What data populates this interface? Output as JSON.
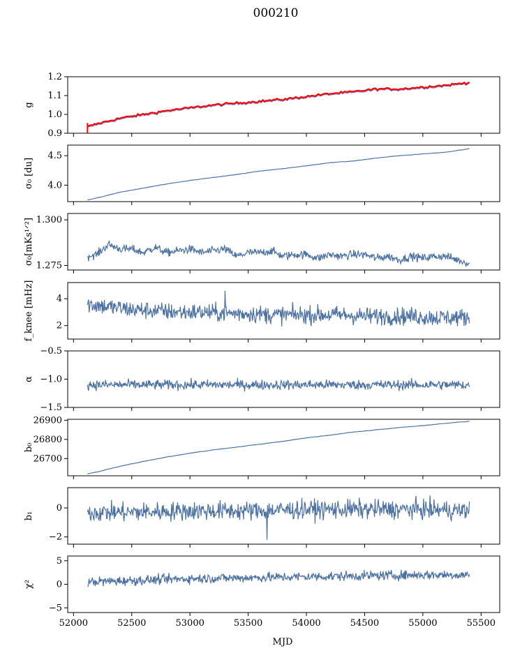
{
  "figure": {
    "title": "000210",
    "xlabel": "MJD"
  },
  "chart_data": {
    "type": "line",
    "title": "000210",
    "xlabel": "MJD",
    "xlim": [
      51950,
      55660
    ],
    "x_ticks": [
      52000,
      52500,
      53000,
      53500,
      54000,
      54500,
      55000,
      55500
    ],
    "x_tick_labels": [
      "52000",
      "52500",
      "53000",
      "53500",
      "54000",
      "54500",
      "55000",
      "55500"
    ],
    "colors": {
      "series": "#4c72a4",
      "overlay": "#ff0000",
      "overlay_under": "#8a6fb0"
    },
    "panels": [
      {
        "id": "g",
        "ylabel": "g",
        "ylim": [
          0.9,
          1.2
        ],
        "yticks": [
          0.9,
          1.0,
          1.1,
          1.2
        ],
        "ytick_labels": [
          "0.9",
          "1.0",
          "1.1",
          "1.2"
        ],
        "x": [
          52120,
          52200,
          52400,
          52600,
          52800,
          53000,
          53200,
          53400,
          53600,
          53800,
          54000,
          54200,
          54400,
          54600,
          54800,
          55000,
          55200,
          55400
        ],
        "y": [
          0.93,
          0.945,
          0.975,
          0.995,
          1.015,
          1.03,
          1.045,
          1.055,
          1.065,
          1.075,
          1.09,
          1.105,
          1.115,
          1.13,
          1.13,
          1.14,
          1.15,
          1.165
        ],
        "style": "red-overlay"
      },
      {
        "id": "sigma0_du",
        "ylabel": "σ₀ [du]",
        "ylim": [
          3.72,
          4.68
        ],
        "yticks": [
          4.0,
          4.5
        ],
        "ytick_labels": [
          "4.0",
          "4.5"
        ],
        "x": [
          52120,
          52200,
          52400,
          52600,
          52800,
          53000,
          53200,
          53400,
          53600,
          53800,
          54000,
          54200,
          54400,
          54600,
          54800,
          55000,
          55200,
          55400
        ],
        "y": [
          3.75,
          3.78,
          3.88,
          3.95,
          4.02,
          4.08,
          4.13,
          4.18,
          4.24,
          4.28,
          4.33,
          4.38,
          4.41,
          4.46,
          4.5,
          4.53,
          4.56,
          4.62
        ],
        "style": "smooth"
      },
      {
        "id": "sigma0_mKs",
        "ylabel": "σ₀[mKs¹ᐟ²]",
        "ylim": [
          1.2725,
          1.3035
        ],
        "yticks": [
          1.275,
          1.3
        ],
        "ytick_labels": [
          "1.275",
          "1.300"
        ],
        "x": [
          52120,
          52200,
          52300,
          52400,
          52500,
          52600,
          52700,
          52800,
          52900,
          53000,
          53100,
          53200,
          53300,
          53400,
          53500,
          53600,
          53700,
          53800,
          53900,
          54000,
          54100,
          54200,
          54300,
          54400,
          54500,
          54600,
          54700,
          54800,
          54900,
          55000,
          55100,
          55200,
          55300,
          55400
        ],
        "y": [
          1.28,
          1.281,
          1.2865,
          1.284,
          1.284,
          1.282,
          1.285,
          1.282,
          1.283,
          1.284,
          1.282,
          1.283,
          1.284,
          1.28,
          1.282,
          1.282,
          1.283,
          1.28,
          1.281,
          1.281,
          1.279,
          1.281,
          1.28,
          1.281,
          1.281,
          1.279,
          1.28,
          1.278,
          1.28,
          1.279,
          1.28,
          1.28,
          1.278,
          1.276
        ],
        "style": "noisy-small"
      },
      {
        "id": "fknee",
        "ylabel": "f_knee [mHz]",
        "ylim": [
          1.0,
          5.2
        ],
        "yticks": [
          2,
          4
        ],
        "ytick_labels": [
          "2",
          "4"
        ],
        "x": [
          52120,
          52300,
          52500,
          52700,
          52900,
          53100,
          53300,
          53500,
          53700,
          53900,
          54100,
          54300,
          54500,
          54700,
          54900,
          55100,
          55300,
          55400
        ],
        "y": [
          3.6,
          3.4,
          3.2,
          3.1,
          3.0,
          3.0,
          2.9,
          2.9,
          2.8,
          2.8,
          2.8,
          2.8,
          2.7,
          2.7,
          2.7,
          2.6,
          2.6,
          2.6
        ],
        "style": "noisy-large"
      },
      {
        "id": "alpha",
        "ylabel": "α",
        "ylim": [
          -1.5,
          -0.5
        ],
        "yticks": [
          -1.5,
          -1.0,
          -0.5
        ],
        "ytick_labels": [
          "−1.5",
          "−1.0",
          "−0.5"
        ],
        "x": [
          52120,
          52500,
          53000,
          53500,
          54000,
          54500,
          55000,
          55400
        ],
        "y": [
          -1.1,
          -1.1,
          -1.1,
          -1.1,
          -1.1,
          -1.1,
          -1.1,
          -1.1
        ],
        "style": "noisy-medium"
      },
      {
        "id": "b0",
        "ylabel": "b₀",
        "ylim": [
          26610,
          26905
        ],
        "yticks": [
          26700,
          26800,
          26900
        ],
        "ytick_labels": [
          "26700",
          "26800",
          "26900"
        ],
        "x": [
          52120,
          52200,
          52400,
          52600,
          52800,
          53000,
          53200,
          53400,
          53600,
          53800,
          54000,
          54200,
          54400,
          54600,
          54800,
          55000,
          55200,
          55400
        ],
        "y": [
          26620,
          26630,
          26660,
          26685,
          26708,
          26728,
          26745,
          26760,
          26775,
          26790,
          26808,
          26822,
          26838,
          26850,
          26862,
          26872,
          26884,
          26895
        ],
        "style": "smooth"
      },
      {
        "id": "b1",
        "ylabel": "b₁",
        "ylim": [
          -2.5,
          1.4
        ],
        "yticks": [
          -2,
          0
        ],
        "ytick_labels": [
          "−2",
          "0"
        ],
        "x": [
          52120,
          52500,
          53000,
          53500,
          54000,
          54500,
          55000,
          55400
        ],
        "y": [
          -0.3,
          -0.3,
          -0.2,
          -0.2,
          -0.1,
          -0.1,
          -0.1,
          -0.2
        ],
        "style": "noisy-b1"
      },
      {
        "id": "chi2",
        "ylabel": "χ²",
        "ylim": [
          -6,
          6
        ],
        "yticks": [
          -5,
          0,
          5
        ],
        "ytick_labels": [
          "−5",
          "0",
          "5"
        ],
        "x": [
          52120,
          52500,
          53000,
          53500,
          54000,
          54500,
          55000,
          55400
        ],
        "y": [
          0.5,
          0.8,
          1.2,
          1.4,
          1.6,
          1.8,
          2.0,
          2.0
        ],
        "style": "noisy-chi"
      }
    ]
  }
}
